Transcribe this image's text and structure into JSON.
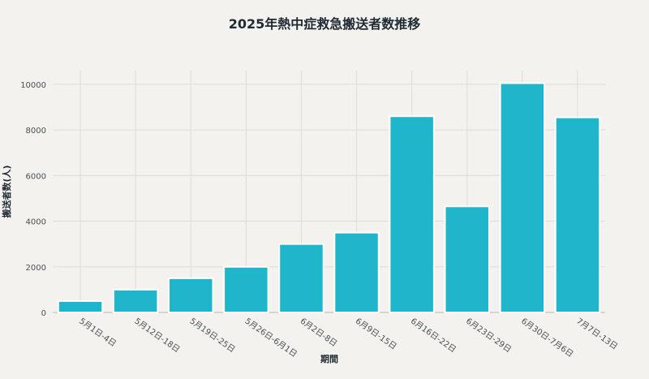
{
  "chart_data": {
    "type": "bar",
    "title": "2025年熱中症救急搬送者数推移",
    "xlabel": "期間",
    "ylabel": "搬送者数(人)",
    "categories": [
      "5月1日-4日",
      "5月12日-18日",
      "5月19日-25日",
      "5月26日-6月1日",
      "6月2日-8日",
      "6月9日-15日",
      "6月16日-22日",
      "6月23日-29日",
      "6月30日-7月6日",
      "7月7日-13日"
    ],
    "values": [
      500,
      1000,
      1500,
      2000,
      3000,
      3500,
      8600,
      4650,
      10050,
      8550
    ],
    "yticks": [
      0,
      2000,
      4000,
      6000,
      8000,
      10000
    ],
    "ylim": [
      0,
      10600
    ],
    "grid": true,
    "bar_color": "#1fb6cb",
    "bar_border": "#ffffff"
  }
}
